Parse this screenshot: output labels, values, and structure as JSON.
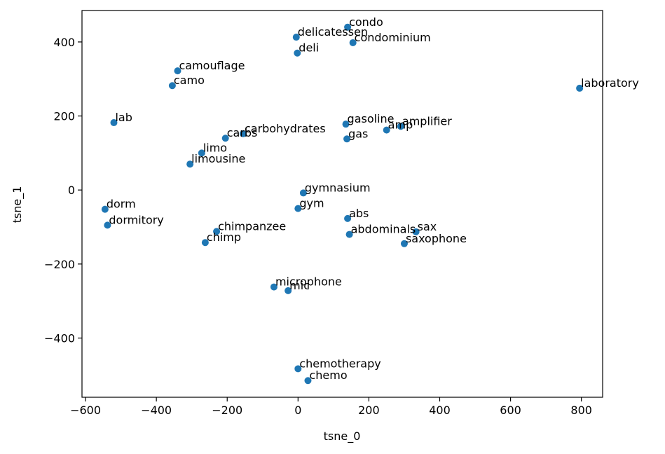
{
  "chart_data": {
    "type": "scatter",
    "title": "",
    "xlabel": "tsne_0",
    "ylabel": "tsne_1",
    "xlim": [
      -610,
      860
    ],
    "ylim": [
      -560,
      485
    ],
    "xticks": [
      -600,
      -400,
      -200,
      0,
      200,
      400,
      600,
      800
    ],
    "yticks": [
      -400,
      -200,
      0,
      200,
      400
    ],
    "xtick_labels": [
      "−600",
      "−400",
      "−200",
      "0",
      "200",
      "400",
      "600",
      "800"
    ],
    "ytick_labels": [
      "−400",
      "−200",
      "0",
      "200",
      "400"
    ],
    "grid": false,
    "marker_color": "#1f77b4",
    "points": [
      {
        "label": "condo",
        "x": 140,
        "y": 440
      },
      {
        "label": "delicatessen",
        "x": -5,
        "y": 413
      },
      {
        "label": "condominium",
        "x": 155,
        "y": 398
      },
      {
        "label": "deli",
        "x": -2,
        "y": 370
      },
      {
        "label": "camouflage",
        "x": -340,
        "y": 322
      },
      {
        "label": "camo",
        "x": -355,
        "y": 282
      },
      {
        "label": "laboratory",
        "x": 795,
        "y": 275
      },
      {
        "label": "lab",
        "x": -520,
        "y": 182
      },
      {
        "label": "gasoline",
        "x": 135,
        "y": 178
      },
      {
        "label": "amplifier",
        "x": 290,
        "y": 172
      },
      {
        "label": "amp",
        "x": 250,
        "y": 162
      },
      {
        "label": "carbohydrates",
        "x": -155,
        "y": 152
      },
      {
        "label": "carbs",
        "x": -205,
        "y": 140
      },
      {
        "label": "gas",
        "x": 138,
        "y": 138
      },
      {
        "label": "limo",
        "x": -272,
        "y": 100
      },
      {
        "label": "limousine",
        "x": -305,
        "y": 70
      },
      {
        "label": "gymnasium",
        "x": 15,
        "y": -8
      },
      {
        "label": "gym",
        "x": 0,
        "y": -50
      },
      {
        "label": "dorm",
        "x": -545,
        "y": -52
      },
      {
        "label": "abs",
        "x": 140,
        "y": -77
      },
      {
        "label": "dormitory",
        "x": -538,
        "y": -95
      },
      {
        "label": "sax",
        "x": 333,
        "y": -113
      },
      {
        "label": "chimpanzee",
        "x": -230,
        "y": -112
      },
      {
        "label": "abdominals",
        "x": 145,
        "y": -120
      },
      {
        "label": "chimp",
        "x": -262,
        "y": -142
      },
      {
        "label": "saxophone",
        "x": 300,
        "y": -145
      },
      {
        "label": "microphone",
        "x": -68,
        "y": -262
      },
      {
        "label": "mic",
        "x": -28,
        "y": -272
      },
      {
        "label": "chemotherapy",
        "x": 0,
        "y": -483
      },
      {
        "label": "chemo",
        "x": 28,
        "y": -515
      }
    ]
  }
}
